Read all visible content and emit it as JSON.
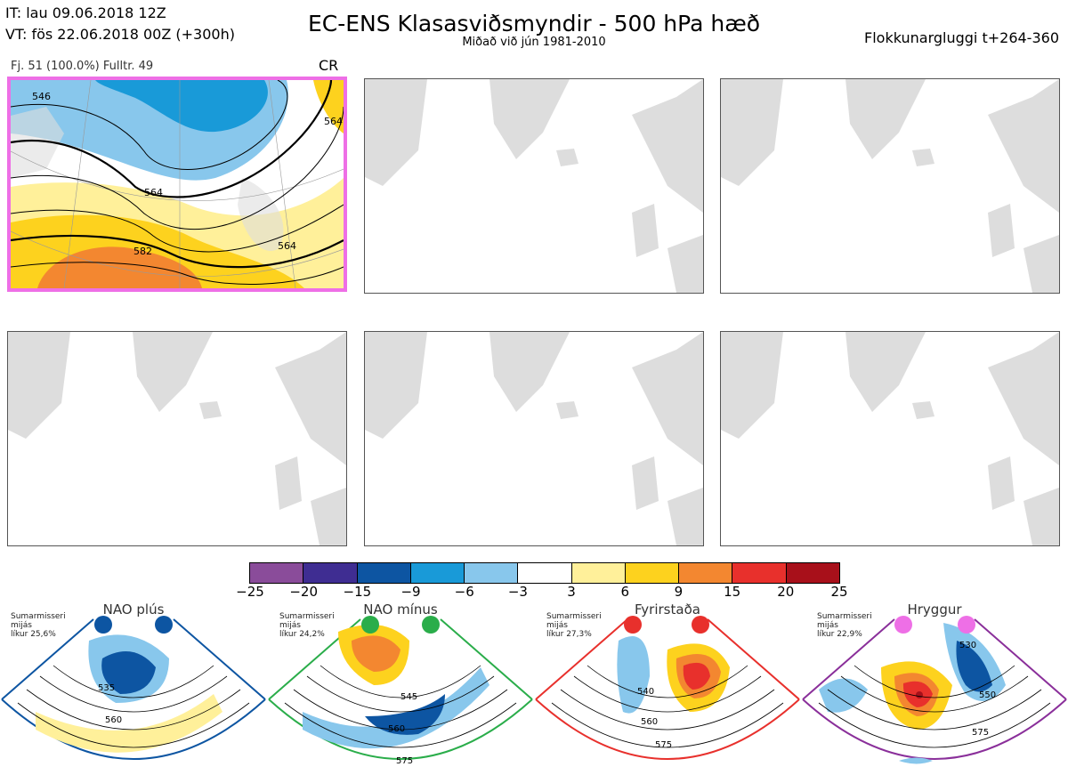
{
  "header": {
    "it_line": "IT: lau 09.06.2018 12Z",
    "vt_line": "VT: fös 22.06.2018 00Z  (+300h)",
    "title": "EC-ENS Klasasviðsmyndir - 500 hPa hæð",
    "subtitle": "Miðað við jún 1981-2010",
    "window": "Flokkunargluggi t+264-360"
  },
  "active_panel": {
    "info": "Fj. 51 (100.0%)   Fulltr. 49",
    "tag": "CR",
    "contour_labels": [
      "546",
      "564",
      "564",
      "582",
      "564"
    ]
  },
  "colorbar": {
    "colors": [
      "#8a4c9a",
      "#3f2d92",
      "#0d55a2",
      "#199ad8",
      "#88c7ec",
      "#ffffff",
      "#fff09a",
      "#fdd21e",
      "#f38730",
      "#e8302c",
      "#a8101a"
    ],
    "ticks": [
      "−25",
      "−20",
      "−15",
      "−9",
      "−6",
      "−3",
      "3",
      "6",
      "9",
      "15",
      "20",
      "25"
    ]
  },
  "regimes": [
    {
      "name": "NAO plús",
      "season": "Sumarmisseri",
      "sub": "mijás",
      "prob": "líkur 25,6%",
      "dot_color": "#0d55a2",
      "border": "#0d55a2",
      "labels": [
        "535",
        "560"
      ]
    },
    {
      "name": "NAO mínus",
      "season": "Sumarmisseri",
      "sub": "mijás",
      "prob": "líkur 24,2%",
      "dot_color": "#2aad4a",
      "border": "#2aad4a",
      "labels": [
        "545",
        "560",
        "575"
      ]
    },
    {
      "name": "Fyrirstaða",
      "season": "Sumarmisseri",
      "sub": "mijás",
      "prob": "líkur 27,3%",
      "dot_color": "#e8302c",
      "border": "#e8302c",
      "labels": [
        "540",
        "560",
        "575"
      ]
    },
    {
      "name": "Hryggur",
      "season": "Sumarmisseri",
      "sub": "mijás",
      "prob": "líkur 22,9%",
      "dot_color": "#ee6fe6",
      "border": "#8a2f9a",
      "labels": [
        "530",
        "550",
        "575"
      ]
    }
  ]
}
